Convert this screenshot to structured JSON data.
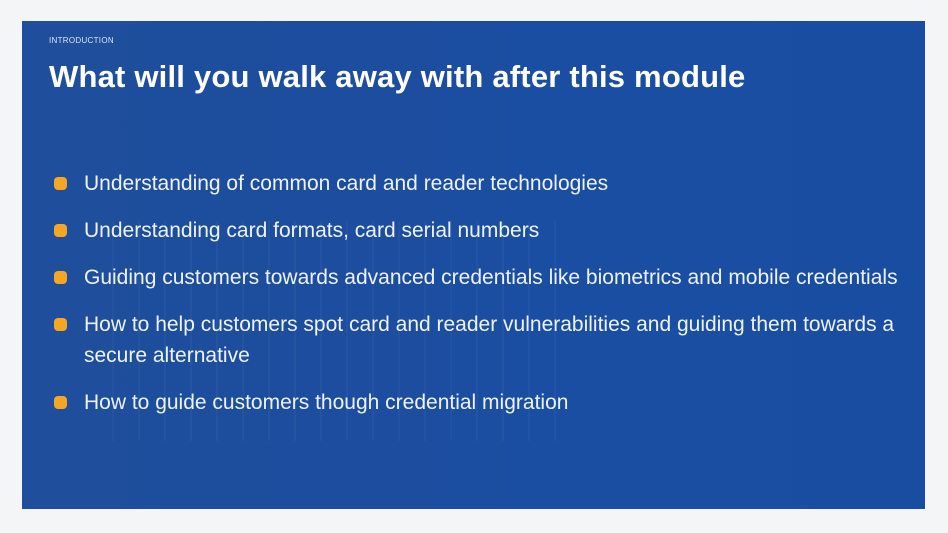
{
  "slide": {
    "section_label": "INTRODUCTION",
    "title": "What will you walk away with after this module",
    "bullets": [
      "Understanding of common card and reader technologies",
      "Understanding card formats, card serial numbers",
      "Guiding customers towards advanced credentials like biometrics and mobile credentials",
      "How to help customers spot card and reader vulnerabilities and guiding them towards a secure alternative",
      "How to guide customers though credential migration"
    ],
    "colors": {
      "background": "#1c4d9e",
      "bullet": "#f5a623",
      "text": "#ffffff"
    }
  }
}
